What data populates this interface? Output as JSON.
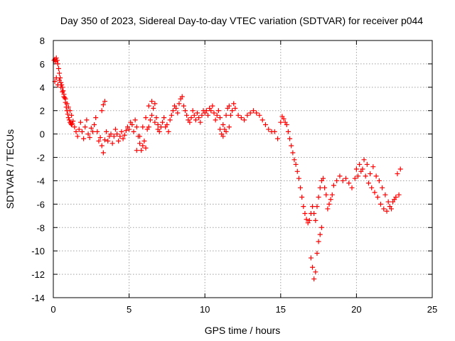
{
  "chart_data": {
    "type": "scatter",
    "title": "Day 350 of 2023, Sidereal Day-to-day VTEC variation (SDTVAR) for receiver p044",
    "xlabel": "GPS time / hours",
    "ylabel": "SDTVAR / TECUs",
    "xlim": [
      0,
      25
    ],
    "ylim": [
      -14,
      8
    ],
    "xticks": [
      0,
      5,
      10,
      15,
      20,
      25
    ],
    "yticks": [
      -14,
      -12,
      -10,
      -8,
      -6,
      -4,
      -2,
      0,
      2,
      4,
      6,
      8
    ],
    "grid": true,
    "marker": "plus",
    "color": "#ff0000",
    "series": [
      {
        "name": "SDTVAR",
        "x": [
          0.05,
          0.1,
          0.15,
          0.2,
          0.25,
          0.3,
          0.35,
          0.4,
          0.45,
          0.5,
          0.55,
          0.6,
          0.65,
          0.7,
          0.75,
          0.8,
          0.85,
          0.9,
          0.95,
          1.0,
          1.05,
          1.1,
          1.15,
          1.2,
          1.25,
          1.3,
          0.1,
          0.2,
          0.3,
          0.4,
          0.5,
          0.6,
          0.7,
          0.8,
          0.9,
          1.0,
          1.1,
          1.2,
          1.4,
          1.5,
          1.6,
          1.7,
          1.8,
          1.9,
          2.0,
          2.1,
          2.2,
          2.3,
          2.4,
          2.5,
          2.6,
          2.7,
          2.8,
          2.9,
          3.0,
          3.1,
          3.2,
          3.3,
          3.4,
          3.5,
          3.6,
          3.7,
          3.8,
          3.9,
          4.0,
          4.1,
          4.2,
          4.3,
          4.4,
          4.5,
          4.6,
          4.7,
          4.8,
          4.9,
          5.0,
          3.2,
          3.3,
          3.4,
          5.1,
          5.2,
          5.3,
          5.4,
          5.5,
          5.6,
          5.7,
          5.8,
          5.9,
          6.0,
          6.1,
          6.2,
          6.3,
          6.4,
          6.5,
          6.6,
          6.7,
          6.8,
          6.9,
          7.0,
          7.1,
          7.2,
          7.3,
          7.4,
          7.5,
          7.6,
          7.7,
          7.8,
          7.9,
          8.0,
          8.1,
          8.2,
          8.3,
          8.4,
          8.5,
          8.6,
          8.7,
          8.8,
          8.9,
          9.0,
          9.1,
          9.2,
          9.3,
          9.4,
          9.5,
          9.6,
          9.7,
          9.8,
          9.9,
          10.0,
          5.5,
          5.7,
          5.9,
          6.1,
          6.3,
          6.5,
          6.7,
          6.9,
          10.1,
          10.2,
          10.3,
          10.4,
          10.5,
          10.6,
          10.7,
          10.8,
          10.9,
          11.0,
          11.1,
          11.2,
          11.3,
          11.4,
          11.5,
          11.6,
          11.7,
          11.8,
          11.9,
          12.0,
          11.0,
          11.2,
          11.4,
          11.6,
          12.2,
          12.4,
          12.6,
          12.8,
          13.0,
          13.2,
          13.4,
          13.6,
          13.8,
          14.0,
          14.2,
          14.4,
          14.6,
          14.8,
          15.0,
          15.1,
          15.2,
          15.3,
          15.4,
          15.5,
          15.6,
          15.7,
          15.8,
          15.9,
          16.0,
          16.1,
          16.2,
          16.3,
          16.4,
          16.5,
          16.6,
          16.7,
          16.8,
          16.9,
          17.0,
          17.1,
          17.2,
          17.3,
          17.4,
          17.5,
          17.6,
          17.7,
          17.8,
          17.9,
          18.0,
          18.1,
          18.2,
          18.3,
          18.4,
          17.0,
          17.1,
          17.2,
          17.3,
          17.4,
          17.5,
          17.6,
          17.7,
          18.5,
          18.7,
          18.9,
          19.1,
          19.3,
          19.5,
          19.7,
          19.9,
          20.1,
          20.3,
          20.5,
          20.7,
          20.9,
          21.1,
          21.3,
          21.5,
          21.7,
          21.9,
          22.1,
          22.3,
          22.5,
          22.7,
          22.9,
          20.0,
          20.2,
          20.4,
          20.6,
          20.8,
          21.0,
          21.2,
          21.4,
          21.6,
          21.8,
          22.0,
          22.2,
          22.4,
          22.6,
          22.8
        ],
        "y": [
          6.3,
          6.4,
          6.2,
          6.5,
          6.3,
          6.0,
          5.6,
          5.2,
          4.8,
          4.4,
          4.2,
          4.0,
          3.7,
          3.4,
          3.1,
          2.7,
          2.3,
          2.0,
          1.7,
          1.4,
          1.2,
          1.0,
          0.9,
          0.8,
          0.9,
          1.1,
          4.5,
          4.8,
          4.2,
          4.6,
          4.0,
          3.6,
          3.2,
          3.0,
          2.6,
          2.3,
          2.0,
          1.6,
          0.6,
          0.2,
          -0.2,
          0.4,
          1.0,
          0.2,
          -0.4,
          0.6,
          1.2,
          0.0,
          -0.3,
          0.5,
          0.2,
          0.8,
          1.4,
          0.2,
          -0.6,
          -0.3,
          -1.0,
          -1.6,
          -0.5,
          0.2,
          -0.6,
          -0.2,
          0.0,
          -0.8,
          -0.2,
          0.4,
          0.0,
          -0.6,
          -0.2,
          0.2,
          -0.4,
          -0.1,
          0.3,
          0.6,
          0.4,
          2.0,
          2.5,
          2.8,
          1.0,
          0.8,
          0.2,
          1.2,
          0.6,
          -0.2,
          -0.8,
          -1.4,
          -1.0,
          -0.6,
          -1.2,
          0.4,
          0.6,
          1.2,
          1.6,
          2.2,
          2.6,
          1.4,
          0.8,
          0.2,
          0.6,
          1.0,
          1.4,
          0.6,
          0.8,
          0.2,
          1.2,
          1.6,
          2.0,
          2.4,
          2.2,
          1.8,
          2.6,
          3.0,
          3.2,
          2.4,
          2.0,
          1.6,
          1.2,
          1.0,
          1.4,
          2.0,
          1.6,
          1.2,
          1.8,
          1.4,
          1.0,
          1.6,
          2.0,
          1.8,
          -1.4,
          -0.2,
          0.6,
          1.4,
          2.4,
          2.8,
          1.0,
          0.4,
          2.0,
          1.6,
          2.2,
          2.0,
          2.4,
          1.8,
          1.2,
          1.6,
          2.0,
          0.4,
          0.0,
          -0.2,
          0.4,
          1.6,
          2.2,
          2.4,
          1.6,
          2.0,
          2.6,
          2.2,
          1.4,
          0.8,
          0.2,
          0.6,
          1.6,
          1.4,
          1.2,
          1.6,
          1.8,
          2.0,
          1.8,
          1.6,
          1.2,
          0.8,
          0.4,
          0.2,
          0.2,
          -0.4,
          1.0,
          1.5,
          1.3,
          1.0,
          0.8,
          0.2,
          -0.4,
          -1.0,
          -1.6,
          -2.2,
          -2.6,
          -3.2,
          -3.8,
          -4.6,
          -5.4,
          -6.2,
          -6.8,
          -7.3,
          -7.6,
          -7.4,
          -6.8,
          -6.2,
          -6.8,
          -7.4,
          -6.2,
          -5.4,
          -4.6,
          -4.0,
          -3.8,
          -4.6,
          -5.2,
          -6.4,
          -6.0,
          -5.6,
          -5.2,
          -10.6,
          -11.4,
          -12.4,
          -11.8,
          -10.2,
          -9.2,
          -8.6,
          -8.0,
          -4.4,
          -4.0,
          -3.6,
          -4.0,
          -3.8,
          -4.2,
          -4.6,
          -3.8,
          -3.6,
          -3.2,
          -2.2,
          -2.6,
          -3.4,
          -2.8,
          -3.6,
          -4.0,
          -4.6,
          -5.2,
          -5.8,
          -6.4,
          -5.6,
          -3.4,
          -3.0,
          -3.0,
          -2.6,
          -3.0,
          -3.6,
          -4.2,
          -4.6,
          -5.0,
          -5.4,
          -6.0,
          -6.4,
          -6.6,
          -6.2,
          -5.8,
          -5.4,
          -5.2
        ]
      }
    ]
  }
}
